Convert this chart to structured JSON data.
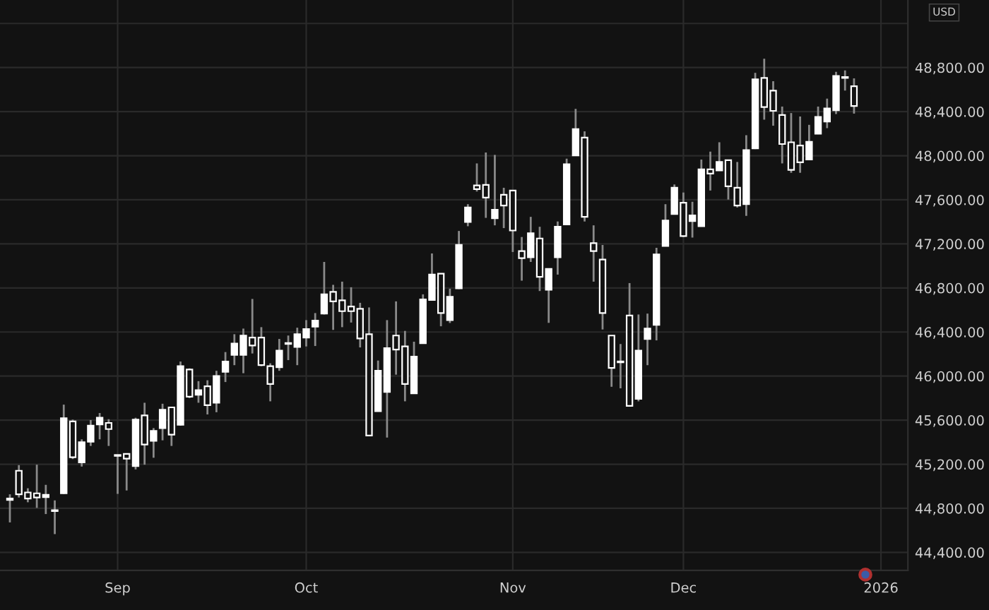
{
  "chart_data": {
    "type": "candlestick",
    "color": "#ffffff",
    "grid": true,
    "annotations": [
      "USD"
    ],
    "categories": [
      null,
      null,
      null,
      null,
      null,
      null,
      null,
      null,
      null,
      null,
      null,
      null,
      "Sep",
      null,
      null,
      null,
      null,
      null,
      null,
      null,
      null,
      null,
      null,
      null,
      null,
      null,
      null,
      null,
      null,
      null,
      null,
      null,
      null,
      "Oct",
      null,
      null,
      null,
      null,
      null,
      null,
      null,
      null,
      null,
      null,
      null,
      null,
      null,
      null,
      null,
      null,
      null,
      null,
      null,
      null,
      null,
      null,
      "Nov",
      null,
      null,
      null,
      null,
      null,
      null,
      null,
      null,
      null,
      null,
      null,
      null,
      null,
      null,
      null,
      null,
      null,
      null,
      "Dec",
      null,
      null,
      null,
      null,
      null,
      null,
      null,
      null,
      null,
      null,
      null,
      null,
      null,
      null,
      null,
      null,
      null,
      null,
      null,
      null,
      null,
      "2026"
    ],
    "ohlc": [
      [
        44876,
        44927,
        44672,
        44889
      ],
      [
        45141,
        45192,
        44898,
        44927
      ],
      [
        44944,
        44982,
        44855,
        44889
      ],
      [
        44936,
        45196,
        44804,
        44898
      ],
      [
        44902,
        45013,
        44748,
        44923
      ],
      [
        44780,
        44872,
        44566,
        44775
      ],
      [
        44936,
        45741,
        44930,
        45617
      ],
      [
        45588,
        45605,
        45247,
        45263
      ],
      [
        45217,
        45426,
        45179,
        45400
      ],
      [
        45404,
        45601,
        45366,
        45550
      ],
      [
        45562,
        45665,
        45426,
        45622
      ],
      [
        45575,
        45609,
        45366,
        45519
      ],
      [
        45280,
        45285,
        44931,
        45276
      ],
      [
        45294,
        45294,
        44962,
        45251
      ],
      [
        45183,
        45622,
        45153,
        45605
      ],
      [
        45643,
        45758,
        45196,
        45379
      ],
      [
        45413,
        45528,
        45259,
        45503
      ],
      [
        45528,
        45749,
        45417,
        45694
      ],
      [
        45716,
        45716,
        45366,
        45468
      ],
      [
        45558,
        46132,
        45550,
        46090
      ],
      [
        46060,
        46070,
        45800,
        45813
      ],
      [
        45830,
        45954,
        45758,
        45873
      ],
      [
        45907,
        45962,
        45652,
        45736
      ],
      [
        45758,
        46048,
        45672,
        46001
      ],
      [
        46039,
        46218,
        45946,
        46132
      ],
      [
        46193,
        46380,
        46099,
        46295
      ],
      [
        46193,
        46431,
        46026,
        46367
      ],
      [
        46350,
        46700,
        46205,
        46278
      ],
      [
        46350,
        46444,
        46090,
        46099
      ],
      [
        46090,
        46116,
        45771,
        45928
      ],
      [
        46081,
        46337,
        46048,
        46231
      ],
      [
        46297,
        46368,
        46145,
        46292
      ],
      [
        46265,
        46439,
        46099,
        46380
      ],
      [
        46350,
        46508,
        46269,
        46427
      ],
      [
        46448,
        46572,
        46273,
        46503
      ],
      [
        46567,
        47036,
        46559,
        46742
      ],
      [
        46764,
        46828,
        46419,
        46678
      ],
      [
        46687,
        46857,
        46444,
        46589
      ],
      [
        46631,
        46806,
        46486,
        46589
      ],
      [
        46610,
        46665,
        46260,
        46342
      ],
      [
        46380,
        46623,
        45460,
        45460
      ],
      [
        45681,
        46141,
        45681,
        46048
      ],
      [
        45856,
        46508,
        45442,
        46253
      ],
      [
        46368,
        46678,
        46013,
        46240
      ],
      [
        46269,
        46410,
        45771,
        45928
      ],
      [
        45844,
        46312,
        45840,
        46176
      ],
      [
        46299,
        46742,
        46295,
        46695
      ],
      [
        46691,
        47113,
        46691,
        46921
      ],
      [
        46930,
        46930,
        46452,
        46572
      ],
      [
        46508,
        46793,
        46482,
        46720
      ],
      [
        46797,
        47317,
        46790,
        47190
      ],
      [
        47398,
        47560,
        47360,
        47530
      ],
      [
        47730,
        47930,
        47675,
        47697
      ],
      [
        47735,
        48029,
        47436,
        47620
      ],
      [
        47432,
        48007,
        47368,
        47509
      ],
      [
        47646,
        47709,
        47343,
        47547
      ],
      [
        47684,
        47684,
        47126,
        47321
      ],
      [
        47134,
        47262,
        46866,
        47070
      ],
      [
        47078,
        47445,
        47036,
        47296
      ],
      [
        47249,
        47355,
        46772,
        46900
      ],
      [
        46784,
        46972,
        46483,
        46972
      ],
      [
        47078,
        47403,
        46921,
        47355
      ],
      [
        47377,
        47973,
        47370,
        47922
      ],
      [
        48003,
        48425,
        48000,
        48241
      ],
      [
        48164,
        48221,
        47403,
        47445
      ],
      [
        47206,
        47368,
        46857,
        47134
      ],
      [
        47058,
        47190,
        46423,
        46572
      ],
      [
        46368,
        46368,
        45903,
        46074
      ],
      [
        46130,
        46291,
        45889,
        46125
      ],
      [
        46550,
        46844,
        45729,
        45729
      ],
      [
        45793,
        46559,
        45771,
        46231
      ],
      [
        46337,
        46567,
        46099,
        46431
      ],
      [
        46465,
        47164,
        46324,
        47104
      ],
      [
        47181,
        47560,
        47181,
        47411
      ],
      [
        47471,
        47739,
        47465,
        47710
      ],
      [
        47573,
        47666,
        47262,
        47270
      ],
      [
        47407,
        47582,
        47257,
        47458
      ],
      [
        47360,
        47965,
        47360,
        47876
      ],
      [
        47876,
        48037,
        47684,
        47837
      ],
      [
        47867,
        48122,
        47862,
        47943
      ],
      [
        47960,
        47960,
        47602,
        47722
      ],
      [
        47709,
        47943,
        47530,
        47547
      ],
      [
        47560,
        48186,
        47454,
        48050
      ],
      [
        48067,
        48752,
        48060,
        48693
      ],
      [
        48706,
        48880,
        48327,
        48442
      ],
      [
        48591,
        48676,
        48272,
        48407
      ],
      [
        48369,
        48446,
        47930,
        48106
      ],
      [
        48122,
        48387,
        47845,
        47871
      ],
      [
        48093,
        48356,
        47845,
        47940
      ],
      [
        47965,
        48280,
        47960,
        48126
      ],
      [
        48199,
        48446,
        48195,
        48352
      ],
      [
        48310,
        48518,
        48250,
        48429
      ],
      [
        48412,
        48761,
        48378,
        48723
      ],
      [
        48710,
        48774,
        48591,
        48706
      ],
      [
        48630,
        48702,
        48382,
        48451
      ],
      null,
      null,
      null
    ],
    "ylim": [
      44237,
      49413
    ],
    "yticks": [
      {
        "value": 44400,
        "label": "44,400.00"
      },
      {
        "value": 44800,
        "label": "44,800.00"
      },
      {
        "value": 45200,
        "label": "45,200.00"
      },
      {
        "value": 45600,
        "label": "45,600.00"
      },
      {
        "value": 46000,
        "label": "46,000.00"
      },
      {
        "value": 46400,
        "label": "46,400.00"
      },
      {
        "value": 46800,
        "label": "46,800.00"
      },
      {
        "value": 47200,
        "label": "47,200.00"
      },
      {
        "value": 47600,
        "label": "47,600.00"
      },
      {
        "value": 48000,
        "label": "48,000.00"
      },
      {
        "value": 48400,
        "label": "48,400.00"
      },
      {
        "value": 48800,
        "label": "48,800.00"
      },
      {
        "value": 49200,
        "label": null
      }
    ]
  }
}
